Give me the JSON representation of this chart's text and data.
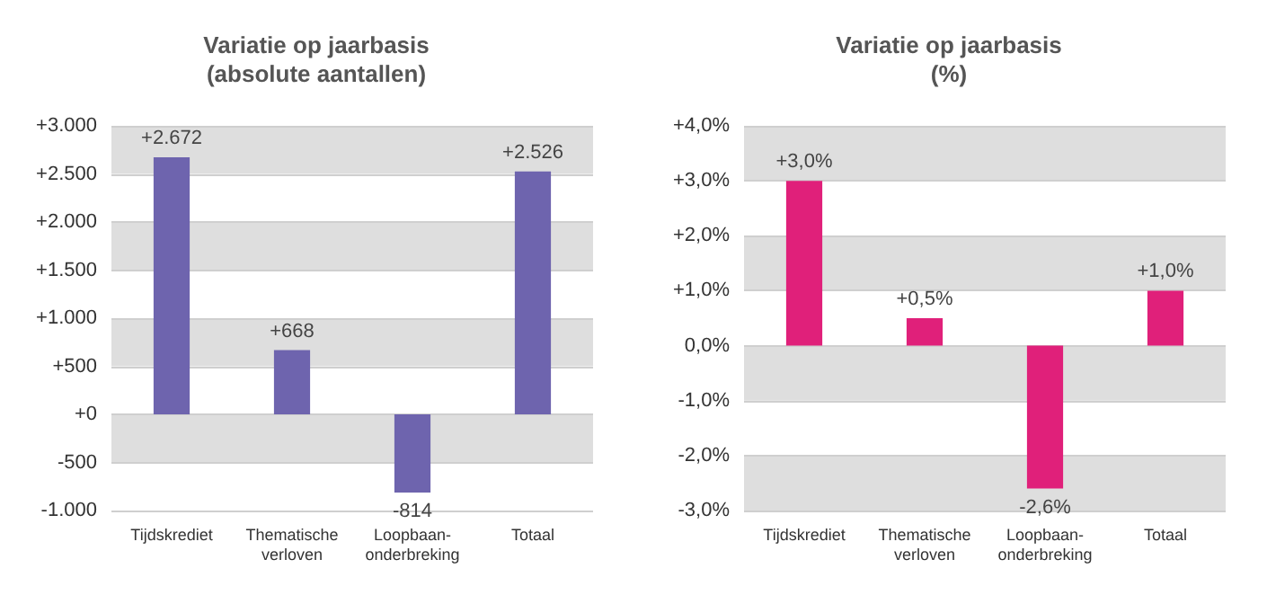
{
  "chart_data": [
    {
      "type": "bar",
      "title": "Variatie op jaarbasis\n(absolute aantallen)",
      "categories": [
        "Tijdskrediet",
        "Thematische\nverloven",
        "Loopbaan-\nonderbreking",
        "Totaal"
      ],
      "values": [
        2672,
        668,
        -814,
        2526
      ],
      "value_labels": [
        "+2.672",
        "+668",
        "-814",
        "+2.526"
      ],
      "color": "#6e64ae",
      "ylim": [
        -1000,
        3000
      ],
      "yticks": [
        {
          "value": -1000,
          "label": "-1.000"
        },
        {
          "value": -500,
          "label": "-500"
        },
        {
          "value": 0,
          "label": "+0"
        },
        {
          "value": 500,
          "label": "+500"
        },
        {
          "value": 1000,
          "label": "+1.000"
        },
        {
          "value": 1500,
          "label": "+1.500"
        },
        {
          "value": 2000,
          "label": "+2.000"
        },
        {
          "value": 2500,
          "label": "+2.500"
        },
        {
          "value": 3000,
          "label": "+3.000"
        }
      ],
      "grid": "y"
    },
    {
      "type": "bar",
      "title": "Variatie op jaarbasis\n(%)",
      "categories": [
        "Tijdskrediet",
        "Thematische\nverloven",
        "Loopbaan-\nonderbreking",
        "Totaal"
      ],
      "values": [
        3.0,
        0.5,
        -2.6,
        1.0
      ],
      "value_labels": [
        "+3,0%",
        "+0,5%",
        "-2,6%",
        "+1,0%"
      ],
      "color": "#e0207a",
      "ylim": [
        -3,
        4
      ],
      "yticks": [
        {
          "value": -3,
          "label": "-3,0%"
        },
        {
          "value": -2,
          "label": "-2,0%"
        },
        {
          "value": -1,
          "label": "-1,0%"
        },
        {
          "value": 0,
          "label": "0,0%"
        },
        {
          "value": 1,
          "label": "+1,0%"
        },
        {
          "value": 2,
          "label": "+2,0%"
        },
        {
          "value": 3,
          "label": "+3,0%"
        },
        {
          "value": 4,
          "label": "+4,0%"
        }
      ],
      "grid": "y"
    }
  ]
}
